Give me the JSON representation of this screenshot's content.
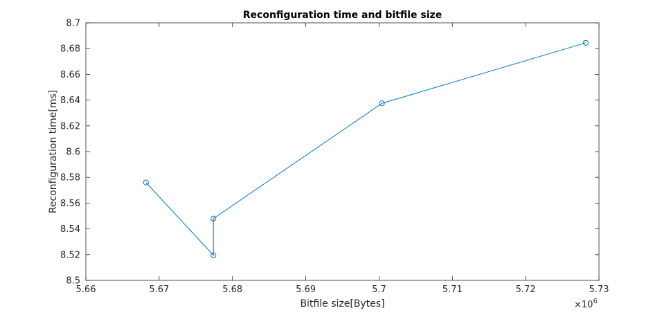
{
  "chart_data": {
    "type": "line",
    "title": "Reconfiguration time and bitfile size",
    "xlabel": "Bitfile size[Bytes]",
    "ylabel": "Reconfiguration time[ms]",
    "x_exponent_base": "×10",
    "x_exponent_power": "6",
    "xlim": [
      5.66,
      5.73
    ],
    "ylim": [
      8.5,
      8.7
    ],
    "x_ticks": [
      5.66,
      5.67,
      5.68,
      5.69,
      5.7,
      5.71,
      5.72,
      5.73
    ],
    "x_tick_labels": [
      "5.66",
      "5.67",
      "5.68",
      "5.69",
      "5.7",
      "5.71",
      "5.72",
      "5.73"
    ],
    "y_ticks": [
      8.5,
      8.52,
      8.54,
      8.56,
      8.58,
      8.6,
      8.62,
      8.64,
      8.66,
      8.68,
      8.7
    ],
    "y_tick_labels": [
      "8.5",
      "8.52",
      "8.54",
      "8.56",
      "8.58",
      "8.6",
      "8.62",
      "8.64",
      "8.66",
      "8.68",
      "8.7"
    ],
    "grid": false,
    "series": [
      {
        "color": "#0072BD",
        "marker": "circle",
        "x": [
          5.6682,
          5.6774,
          5.6774,
          5.7004,
          5.7282
        ],
        "y": [
          8.576,
          8.5195,
          8.548,
          8.6375,
          8.6845
        ]
      }
    ]
  }
}
